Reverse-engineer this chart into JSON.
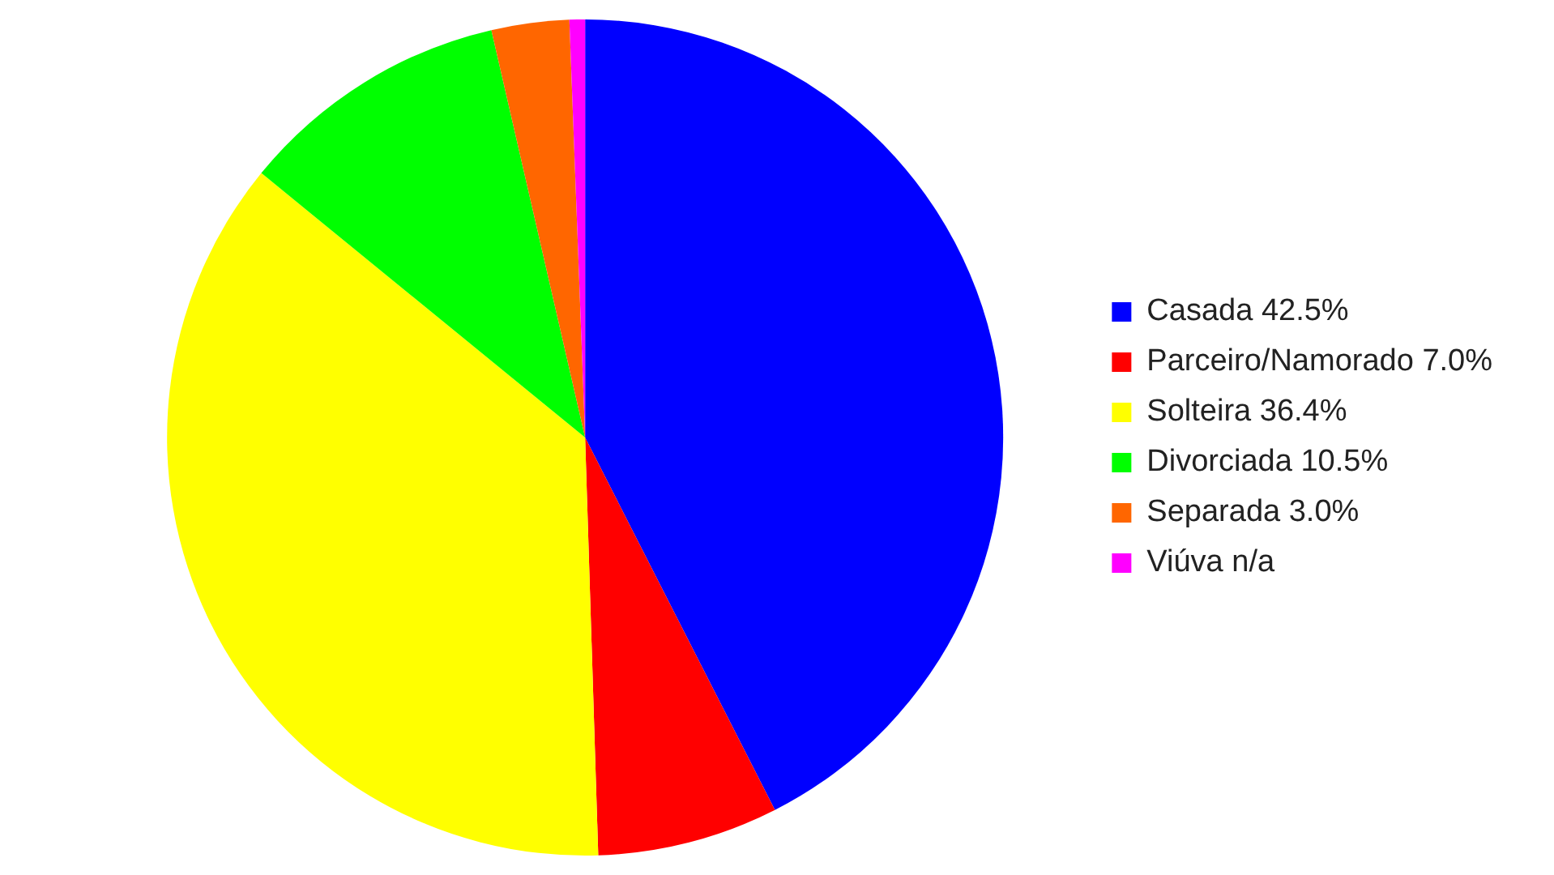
{
  "chart_data": {
    "type": "pie",
    "categories": [
      "Casada",
      "Parceiro/Namorado",
      "Solteira",
      "Divorciada",
      "Separada",
      "Viúva"
    ],
    "values": [
      42.5,
      7.0,
      36.4,
      10.5,
      3.0,
      0.6
    ],
    "value_labels": [
      "42.5%",
      "7.0%",
      "36.4%",
      "10.5%",
      "3.0%",
      "n/a"
    ],
    "colors": [
      "#0000ff",
      "#ff0000",
      "#ffff00",
      "#00ff00",
      "#ff6600",
      "#ff00ff"
    ],
    "legend": "right"
  }
}
